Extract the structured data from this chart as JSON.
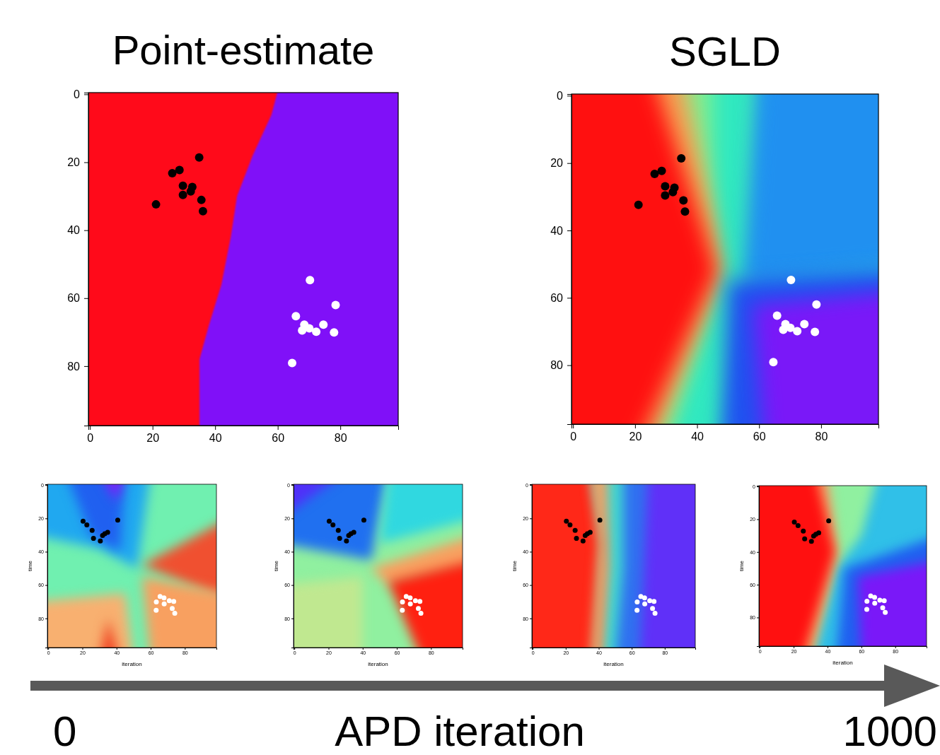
{
  "chart_data": [
    {
      "type": "scatter",
      "title": "Point-estimate",
      "xlim": [
        -0.5,
        98.5
      ],
      "ylim": [
        97.5,
        -0.5
      ],
      "xticks": [
        0,
        20,
        40,
        60,
        80
      ],
      "yticks": [
        0,
        20,
        40,
        60,
        80
      ],
      "marker": "circle",
      "series": [
        {
          "color": "#000000",
          "x": [
            34.9,
            26.3,
            28.6,
            29.7,
            32.7,
            32.2,
            29.7,
            35.6,
            21.1,
            36.1
          ],
          "values": [
            18.6,
            23.2,
            22.3,
            26.9,
            27.3,
            28.6,
            29.6,
            31.1,
            32.4,
            34.4
          ]
        },
        {
          "color": "#ffffff",
          "x": [
            70.3,
            78.5,
            65.8,
            68.5,
            74.6,
            70.1,
            72.3,
            67.8,
            78.0,
            64.6
          ],
          "values": [
            54.7,
            62.0,
            65.3,
            67.8,
            67.8,
            68.9,
            69.9,
            69.5,
            70.1,
            79.1
          ]
        }
      ]
    },
    {
      "type": "scatter",
      "title": "SGLD",
      "xlim": [
        -0.5,
        98.5
      ],
      "ylim": [
        97.5,
        -0.5
      ],
      "xticks": [
        0,
        20,
        40,
        60,
        80
      ],
      "yticks": [
        0,
        20,
        40,
        60,
        80
      ],
      "marker": "circle",
      "series": [
        {
          "color": "#000000",
          "x": [
            34.9,
            26.3,
            28.6,
            29.7,
            32.7,
            32.2,
            29.7,
            35.6,
            21.1,
            36.1
          ],
          "values": [
            18.6,
            23.2,
            22.3,
            26.9,
            27.3,
            28.6,
            29.6,
            31.1,
            32.4,
            34.4
          ]
        },
        {
          "color": "#ffffff",
          "x": [
            70.3,
            78.5,
            65.8,
            68.5,
            74.6,
            70.1,
            72.3,
            67.8,
            78.0,
            64.6
          ],
          "values": [
            54.7,
            62.0,
            65.3,
            67.8,
            67.8,
            68.9,
            69.9,
            69.5,
            70.1,
            79.1
          ]
        }
      ]
    },
    {
      "type": "scatter",
      "xlabel": "iteration",
      "ylabel": "time",
      "xlim": [
        -0.5,
        98.5
      ],
      "ylim": [
        97.5,
        -0.5
      ],
      "xticks": [
        0,
        20,
        40,
        60,
        80
      ],
      "yticks": [
        0,
        20,
        40,
        60,
        80
      ],
      "marker": "circle",
      "series": [
        {
          "color": "#000000",
          "x": [
            20.4,
            22.6,
            25.7,
            26.5,
            30.5,
            31.8,
            33.1,
            34.8,
            40.7
          ],
          "values": [
            21.7,
            23.9,
            27.2,
            32.0,
            33.5,
            30.3,
            29.2,
            28.3,
            21.0
          ]
        },
        {
          "color": "#ffffff",
          "x": [
            63.3,
            63.2,
            65.5,
            67.8,
            67.9,
            70.9,
            73.5,
            72.6,
            74.1
          ],
          "values": [
            70.1,
            75.1,
            66.9,
            67.7,
            71.3,
            69.4,
            69.8,
            74.1,
            76.9
          ]
        }
      ]
    },
    {
      "type": "scatter",
      "xlabel": "iteration",
      "ylabel": "time",
      "xlim": [
        -0.5,
        98.5
      ],
      "ylim": [
        97.5,
        -0.5
      ],
      "xticks": [
        0,
        20,
        40,
        60,
        80
      ],
      "yticks": [
        0,
        20,
        40,
        60,
        80
      ],
      "marker": "circle",
      "series": [
        {
          "color": "#000000",
          "x": [
            20.4,
            22.6,
            25.7,
            26.5,
            30.5,
            31.8,
            33.1,
            34.8,
            40.7
          ],
          "values": [
            21.7,
            23.9,
            27.2,
            32.0,
            33.5,
            30.3,
            29.2,
            28.3,
            21.0
          ]
        },
        {
          "color": "#ffffff",
          "x": [
            63.3,
            63.2,
            65.5,
            67.8,
            67.9,
            70.9,
            73.5,
            72.6,
            74.1
          ],
          "values": [
            70.1,
            75.1,
            66.9,
            67.7,
            71.3,
            69.4,
            69.8,
            74.1,
            76.9
          ]
        }
      ]
    },
    {
      "type": "scatter",
      "xlabel": "iteration",
      "ylabel": "time",
      "xlim": [
        -0.5,
        98.5
      ],
      "ylim": [
        97.5,
        -0.5
      ],
      "xticks": [
        0,
        20,
        40,
        60,
        80
      ],
      "yticks": [
        0,
        20,
        40,
        60,
        80
      ],
      "marker": "circle",
      "series": [
        {
          "color": "#000000",
          "x": [
            20.4,
            22.6,
            25.7,
            26.5,
            30.5,
            31.8,
            33.1,
            34.8,
            40.7
          ],
          "values": [
            21.7,
            23.9,
            27.2,
            32.0,
            33.5,
            30.3,
            29.2,
            28.3,
            21.0
          ]
        },
        {
          "color": "#ffffff",
          "x": [
            63.3,
            63.2,
            65.5,
            67.8,
            67.9,
            70.9,
            73.5,
            72.6,
            74.1
          ],
          "values": [
            70.1,
            75.1,
            66.9,
            67.7,
            71.3,
            69.4,
            69.8,
            74.1,
            76.9
          ]
        }
      ]
    },
    {
      "type": "scatter",
      "xlabel": "iteration",
      "ylabel": "time",
      "xlim": [
        -0.5,
        98.5
      ],
      "ylim": [
        97.5,
        -0.5
      ],
      "xticks": [
        0,
        20,
        40,
        60,
        80
      ],
      "yticks": [
        0,
        20,
        40,
        60,
        80
      ],
      "marker": "circle",
      "series": [
        {
          "color": "#000000",
          "x": [
            20.4,
            22.6,
            25.7,
            26.5,
            30.5,
            31.8,
            33.1,
            34.8,
            40.7
          ],
          "values": [
            21.7,
            23.9,
            27.2,
            32.0,
            33.5,
            30.3,
            29.2,
            28.3,
            21.0
          ]
        },
        {
          "color": "#ffffff",
          "x": [
            63.3,
            63.2,
            65.5,
            67.8,
            67.9,
            70.9,
            73.5,
            72.6,
            74.1
          ],
          "values": [
            70.1,
            75.1,
            66.9,
            67.7,
            71.3,
            69.4,
            69.8,
            74.1,
            76.9
          ]
        }
      ]
    },
    {
      "type": "other",
      "annotations": [
        "0",
        "APD iteration",
        "1000"
      ]
    }
  ]
}
